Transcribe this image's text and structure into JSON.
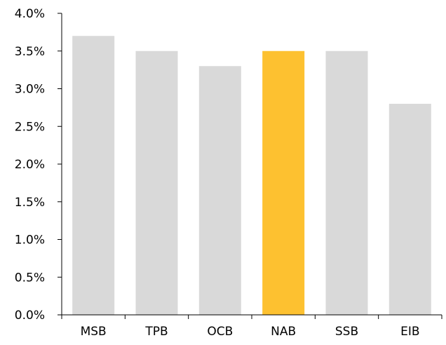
{
  "chart_data": {
    "type": "bar",
    "categories": [
      "MSB",
      "TPB",
      "OCB",
      "NAB",
      "SSB",
      "EIB"
    ],
    "values": [
      3.7,
      3.5,
      3.3,
      3.5,
      3.5,
      2.8
    ],
    "unit": "%",
    "ylim": [
      0,
      4.0
    ],
    "yticks": [
      "0.0%",
      "0.5%",
      "1.0%",
      "1.5%",
      "2.0%",
      "2.5%",
      "3.0%",
      "3.5%",
      "4.0%"
    ],
    "grid": false,
    "colors": {
      "default_bar": "#d9d9d9",
      "highlight_bar": "#fdc130",
      "axis": "#000000"
    },
    "highlight_category": "NAB"
  }
}
